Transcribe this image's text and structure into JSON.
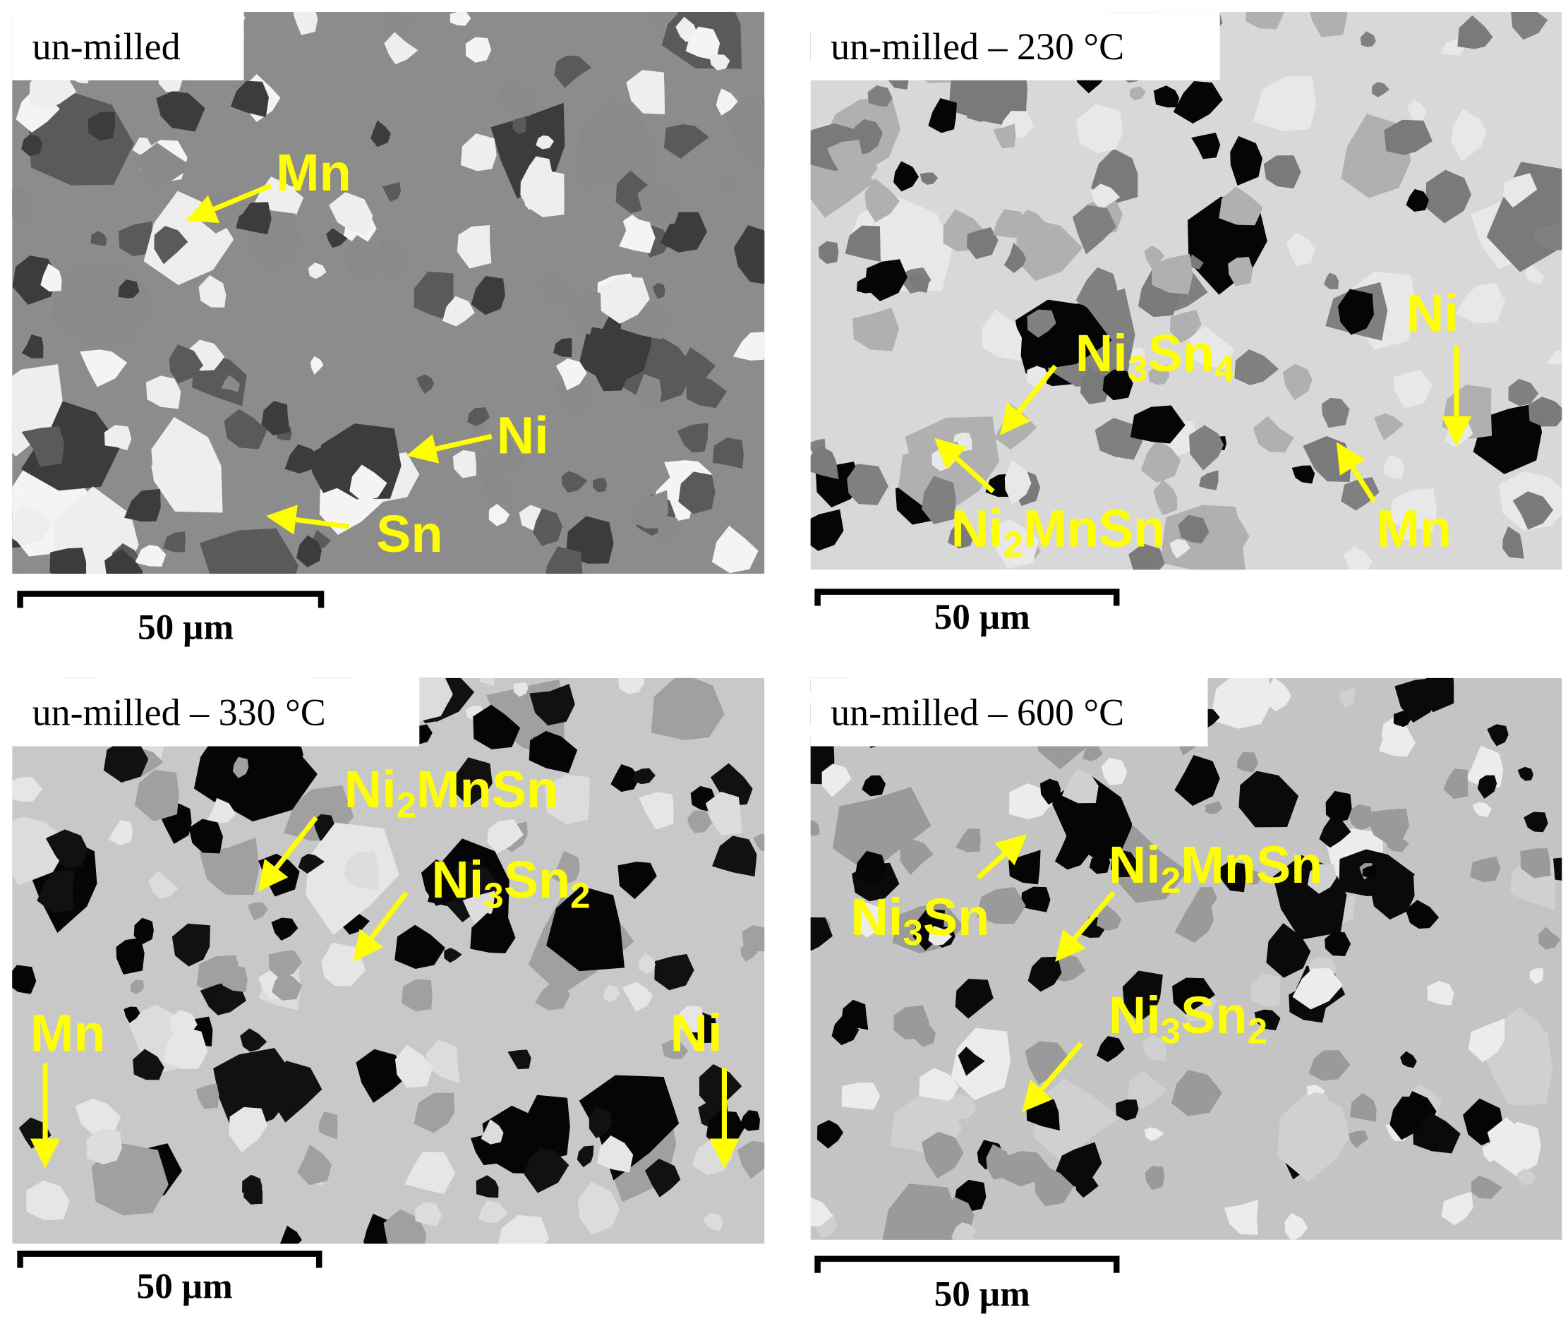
{
  "panels": [
    {
      "label": "un-milled",
      "annotations": [
        "Mn",
        "Ni",
        "Sn"
      ],
      "scale_bar": "50 µm"
    },
    {
      "label": "un-milled  – 230 °C",
      "annotations": [
        "Ni3Sn4",
        "Ni2MnSn",
        "Ni",
        "Mn"
      ],
      "scale_bar": "50 µm"
    },
    {
      "label": "un-milled  – 330 °C",
      "annotations": [
        "Ni2MnSn",
        "Ni3Sn2",
        "Mn",
        "Ni"
      ],
      "scale_bar": "50 µm"
    },
    {
      "label": "un-milled  – 600 °C",
      "annotations": [
        "Ni3Sn",
        "Ni2MnSn",
        "Ni3Sn2"
      ],
      "scale_bar": "50 µm"
    }
  ]
}
